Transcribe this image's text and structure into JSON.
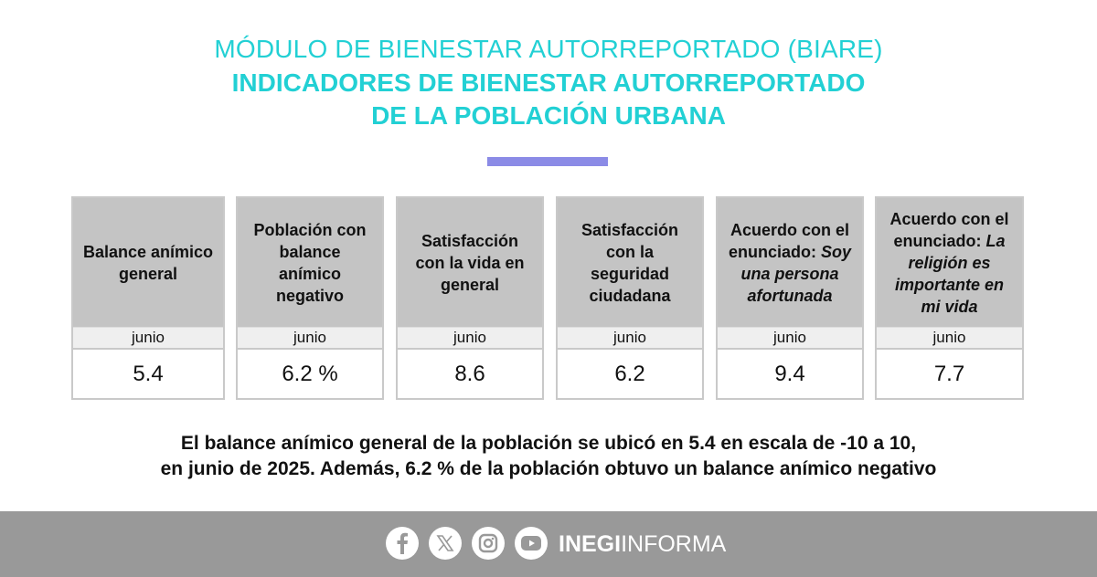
{
  "header": {
    "line1": "MÓDULO DE BIENESTAR AUTORREPORTADO (BIARE)",
    "line2": "INDICADORES DE BIENESTAR AUTORREPORTADO",
    "line3": "DE LA POBLACIÓN URBANA"
  },
  "cards": [
    {
      "title": "Balance anímico general",
      "italic": "",
      "period": "junio",
      "value": "5.4"
    },
    {
      "title": "Población con balance anímico negativo",
      "italic": "",
      "period": "junio",
      "value": "6.2 %"
    },
    {
      "title": "Satisfacción con la vida en general",
      "italic": "",
      "period": "junio",
      "value": "8.6"
    },
    {
      "title": "Satisfacción con la seguridad ciudadana",
      "italic": "",
      "period": "junio",
      "value": "6.2"
    },
    {
      "title": "Acuerdo con el enunciado:",
      "italic": "Soy una persona afortunada",
      "period": "junio",
      "value": "9.4"
    },
    {
      "title": "Acuerdo con el enunciado:",
      "italic": "La religión es importante en mi vida",
      "period": "junio",
      "value": "7.7"
    }
  ],
  "summary": {
    "line1": "El balance anímico general de la población se ubicó en 5.4 en escala de -10 a 10,",
    "line2": "en junio de 2025. Además, 6.2 % de la población obtuvo un balance anímico negativo"
  },
  "footer": {
    "brand_bold": "INEGI",
    "brand_light": "INFORMA",
    "icons": [
      "facebook-icon",
      "x-icon",
      "instagram-icon",
      "youtube-icon"
    ]
  },
  "colors": {
    "title": "#22d0d4",
    "accent_bar": "#8b8be6",
    "footer": "#999999"
  }
}
